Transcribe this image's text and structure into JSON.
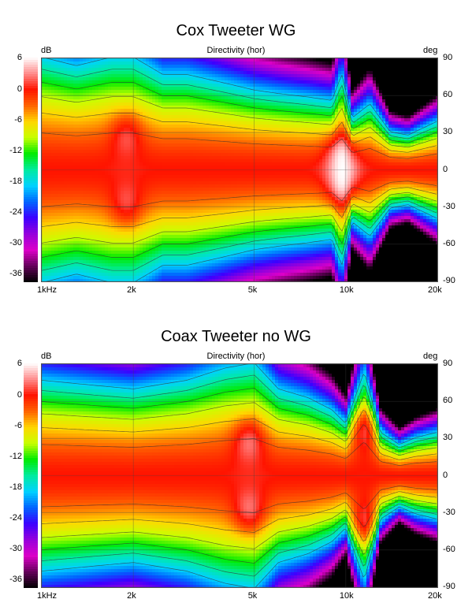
{
  "chart_data": [
    {
      "type": "heatmap",
      "title": "Cox Tweeter WG",
      "top_label": "Directivity (hor)",
      "zunit": "dB",
      "yunit": "deg",
      "colorbar_ticks": [
        "6",
        "0",
        "-6",
        "-12",
        "-18",
        "-24",
        "-30",
        "-36"
      ],
      "zlim": [
        -36,
        6
      ],
      "yticks": [
        "90",
        "60",
        "30",
        "0",
        "-30",
        "-60",
        "-90"
      ],
      "ylim": [
        -90,
        90
      ],
      "xticks": [
        "1kHz",
        "2k",
        "5k",
        "10k",
        "20k"
      ],
      "xtick_values": [
        1000,
        2000,
        5000,
        10000,
        20000
      ],
      "xlim": [
        1000,
        20000
      ],
      "xscale": "log",
      "grid": true,
      "beamwidth_profile": [
        {
          "f": 1000,
          "w": 65
        },
        {
          "f": 1300,
          "w": 60
        },
        {
          "f": 1700,
          "w": 65
        },
        {
          "f": 2000,
          "w": 65
        },
        {
          "f": 2500,
          "w": 55
        },
        {
          "f": 3000,
          "w": 55
        },
        {
          "f": 4000,
          "w": 50
        },
        {
          "f": 5000,
          "w": 46
        },
        {
          "f": 6000,
          "w": 44
        },
        {
          "f": 7500,
          "w": 42
        },
        {
          "f": 9000,
          "w": 40
        },
        {
          "f": 9700,
          "w": 55
        },
        {
          "f": 10500,
          "w": 30
        },
        {
          "f": 12000,
          "w": 38
        },
        {
          "f": 14000,
          "w": 22
        },
        {
          "f": 16000,
          "w": 20
        },
        {
          "f": 20000,
          "w": 28
        }
      ],
      "hotspots": [
        {
          "f": 1900,
          "angle": 30,
          "dB": 3
        },
        {
          "f": 1900,
          "angle": -30,
          "dB": 3
        },
        {
          "f": 9700,
          "angle": 15,
          "dB": 5
        },
        {
          "f": 9700,
          "angle": -15,
          "dB": 5
        }
      ],
      "nulls": [
        {
          "f": 14500,
          "angle": 85,
          "dB": -33
        },
        {
          "f": 14500,
          "angle": -85,
          "dB": -33
        }
      ]
    },
    {
      "type": "heatmap",
      "title": "Coax Tweeter no WG",
      "top_label": "Directivity (hor)",
      "zunit": "dB",
      "yunit": "deg",
      "colorbar_ticks": [
        "6",
        "0",
        "-6",
        "-12",
        "-18",
        "-24",
        "-30",
        "-36"
      ],
      "zlim": [
        -36,
        6
      ],
      "yticks": [
        "90",
        "60",
        "30",
        "0",
        "-30",
        "-60",
        "-90"
      ],
      "ylim": [
        -90,
        90
      ],
      "xticks": [
        "1kHz",
        "2k",
        "5k",
        "10k",
        "20k"
      ],
      "xtick_values": [
        1000,
        2000,
        5000,
        10000,
        20000
      ],
      "xlim": [
        1000,
        20000
      ],
      "xscale": "log",
      "grid": true,
      "beamwidth_profile": [
        {
          "f": 1000,
          "w": 55
        },
        {
          "f": 1500,
          "w": 52
        },
        {
          "f": 2000,
          "w": 50
        },
        {
          "f": 3000,
          "w": 55
        },
        {
          "f": 4000,
          "w": 62
        },
        {
          "f": 5000,
          "w": 65
        },
        {
          "f": 6000,
          "w": 50
        },
        {
          "f": 7500,
          "w": 45
        },
        {
          "f": 9000,
          "w": 38
        },
        {
          "f": 10000,
          "w": 30
        },
        {
          "f": 11500,
          "w": 60
        },
        {
          "f": 13000,
          "w": 25
        },
        {
          "f": 15000,
          "w": 18
        },
        {
          "f": 17000,
          "w": 22
        },
        {
          "f": 20000,
          "w": 25
        }
      ],
      "hotspots": [
        {
          "f": 4800,
          "angle": 30,
          "dB": 4
        },
        {
          "f": 4800,
          "angle": -30,
          "dB": 4
        },
        {
          "f": 11500,
          "angle": 40,
          "dB": 5
        },
        {
          "f": 11500,
          "angle": -40,
          "dB": 5
        }
      ],
      "nulls": [
        {
          "f": 8000,
          "angle": 90,
          "dB": -24
        },
        {
          "f": 8000,
          "angle": -90,
          "dB": -24
        },
        {
          "f": 17000,
          "angle": 88,
          "dB": -33
        },
        {
          "f": 17000,
          "angle": -88,
          "dB": -33
        }
      ]
    }
  ]
}
